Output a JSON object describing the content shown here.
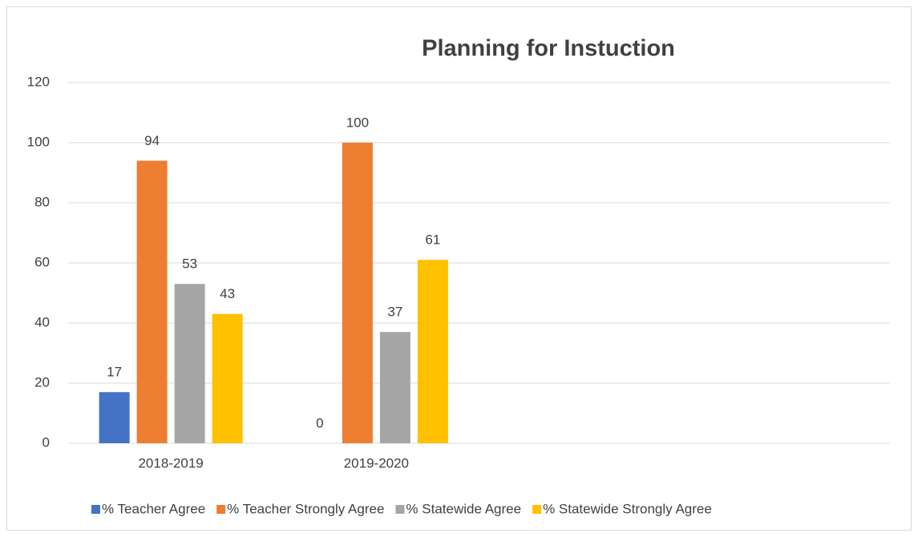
{
  "chart_data": {
    "type": "bar",
    "title": "Planning for Instuction",
    "categories": [
      "2018-2019",
      "2019-2020",
      null,
      null
    ],
    "series": [
      {
        "name": "% Teacher Agree",
        "color": "#4472c4",
        "values": [
          17,
          0,
          null,
          null
        ]
      },
      {
        "name": "% Teacher Strongly Agree",
        "color": "#ed7d31",
        "values": [
          94,
          100,
          null,
          null
        ]
      },
      {
        "name": "% Statewide Agree",
        "color": "#a5a5a5",
        "values": [
          53,
          37,
          null,
          null
        ]
      },
      {
        "name": "% Statewide Strongly Agree",
        "color": "#ffc000",
        "values": [
          43,
          61,
          null,
          null
        ]
      }
    ],
    "ylim": [
      0,
      120
    ],
    "yticks": [
      0,
      20,
      40,
      60,
      80,
      100,
      120
    ],
    "grid": true,
    "legend": "bottom"
  }
}
